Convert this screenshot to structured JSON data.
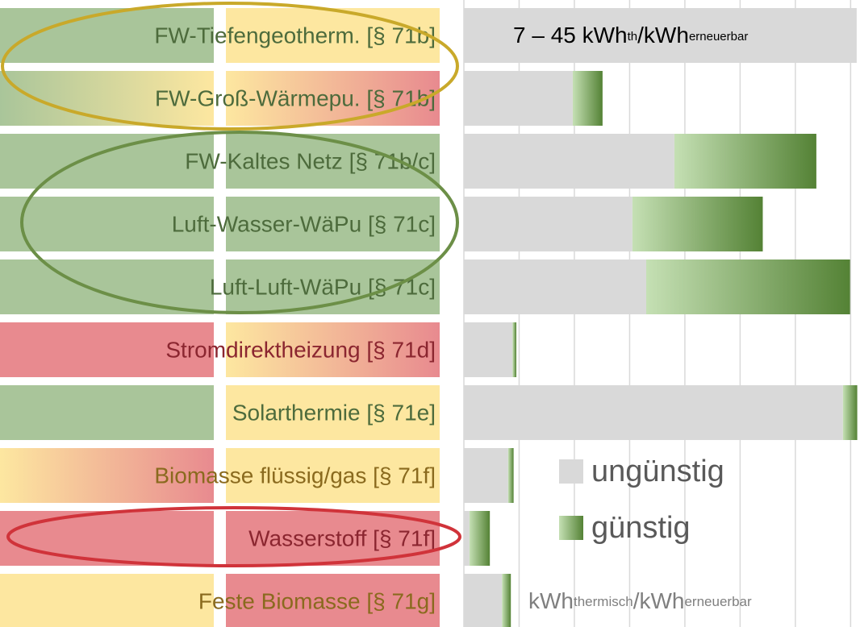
{
  "chart_data": {
    "type": "stacked-barh",
    "categories": [
      "FW-Tiefengeotherm. [§ 71b]",
      "FW-Groß-Wärmepu. [§ 71b]",
      "FW-Kaltes Netz [§ 71b/c]",
      "Luft-Wasser-WäPu [§ 71c]",
      "Luft-Luft-WäPu [§ 71c]",
      "Stromdirektheizung [§ 71d]",
      "Solarthermie [§ 71e]",
      "Biomasse flüssig/gas [§ 71f]",
      "Wasserstoff [§ 71f]",
      "Feste Biomasse [§ 71g]"
    ],
    "series": [
      {
        "name": "ungünstig",
        "color": "#d9d9d9",
        "values": [
          7.11,
          1.97,
          3.81,
          3.05,
          3.3,
          0.88,
          6.86,
          0.8,
          0.1,
          0.69
        ]
      },
      {
        "name": "günstig",
        "color": [
          "#c5e0b4",
          "#548235"
        ],
        "values": [
          0,
          0.54,
          2.57,
          2.36,
          3.69,
          0.07,
          0.26,
          0.1,
          0.37,
          0.16
        ]
      }
    ],
    "xlim": [
      0,
      7.17
    ],
    "xticks": [
      0,
      1,
      2,
      3,
      4,
      5,
      6,
      7
    ],
    "grid": true,
    "annotation": [
      "7 – 45 kWh",
      "th",
      "/kWh",
      "erneuerbar"
    ],
    "x_label": [
      "kWh",
      "thermisch",
      "/kWh",
      "erneuerbar"
    ],
    "label_colors": {
      "left": [
        [
          "#a9c59a",
          "#a9c59a"
        ],
        [
          "#a9c59a",
          "#fde7a0"
        ],
        [
          "#a9c59a",
          "#a9c59a"
        ],
        [
          "#a9c59a",
          "#a9c59a"
        ],
        [
          "#a9c59a",
          "#a9c59a"
        ],
        [
          "#e88a8f",
          "#e88a8f"
        ],
        [
          "#a9c59a",
          "#a9c59a"
        ],
        [
          "#fde7a0",
          "#e88a8f"
        ],
        [
          "#e88a8f",
          "#e88a8f"
        ],
        [
          "#fde7a0",
          "#fde7a0"
        ]
      ],
      "right": [
        [
          "#fde7a0",
          "#fde7a0"
        ],
        [
          "#fde7a0",
          "#e88a8f"
        ],
        [
          "#a9c59a",
          "#a9c59a"
        ],
        [
          "#a9c59a",
          "#a9c59a"
        ],
        [
          "#a9c59a",
          "#a9c59a"
        ],
        [
          "#fde7a0",
          "#e88a8f"
        ],
        [
          "#fde7a0",
          "#fde7a0"
        ],
        [
          "#fde7a0",
          "#fde7a0"
        ],
        [
          "#e88a8f",
          "#e88a8f"
        ],
        [
          "#e88a8f",
          "#e88a8f"
        ]
      ],
      "text": [
        "#4d6b3c",
        "#4d6b3c",
        "#4d6b3c",
        "#4d6b3c",
        "#4d6b3c",
        "#8b2630",
        "#4d6b3c",
        "#8a6a1e",
        "#8b2630",
        "#8a6a1e"
      ]
    }
  }
}
